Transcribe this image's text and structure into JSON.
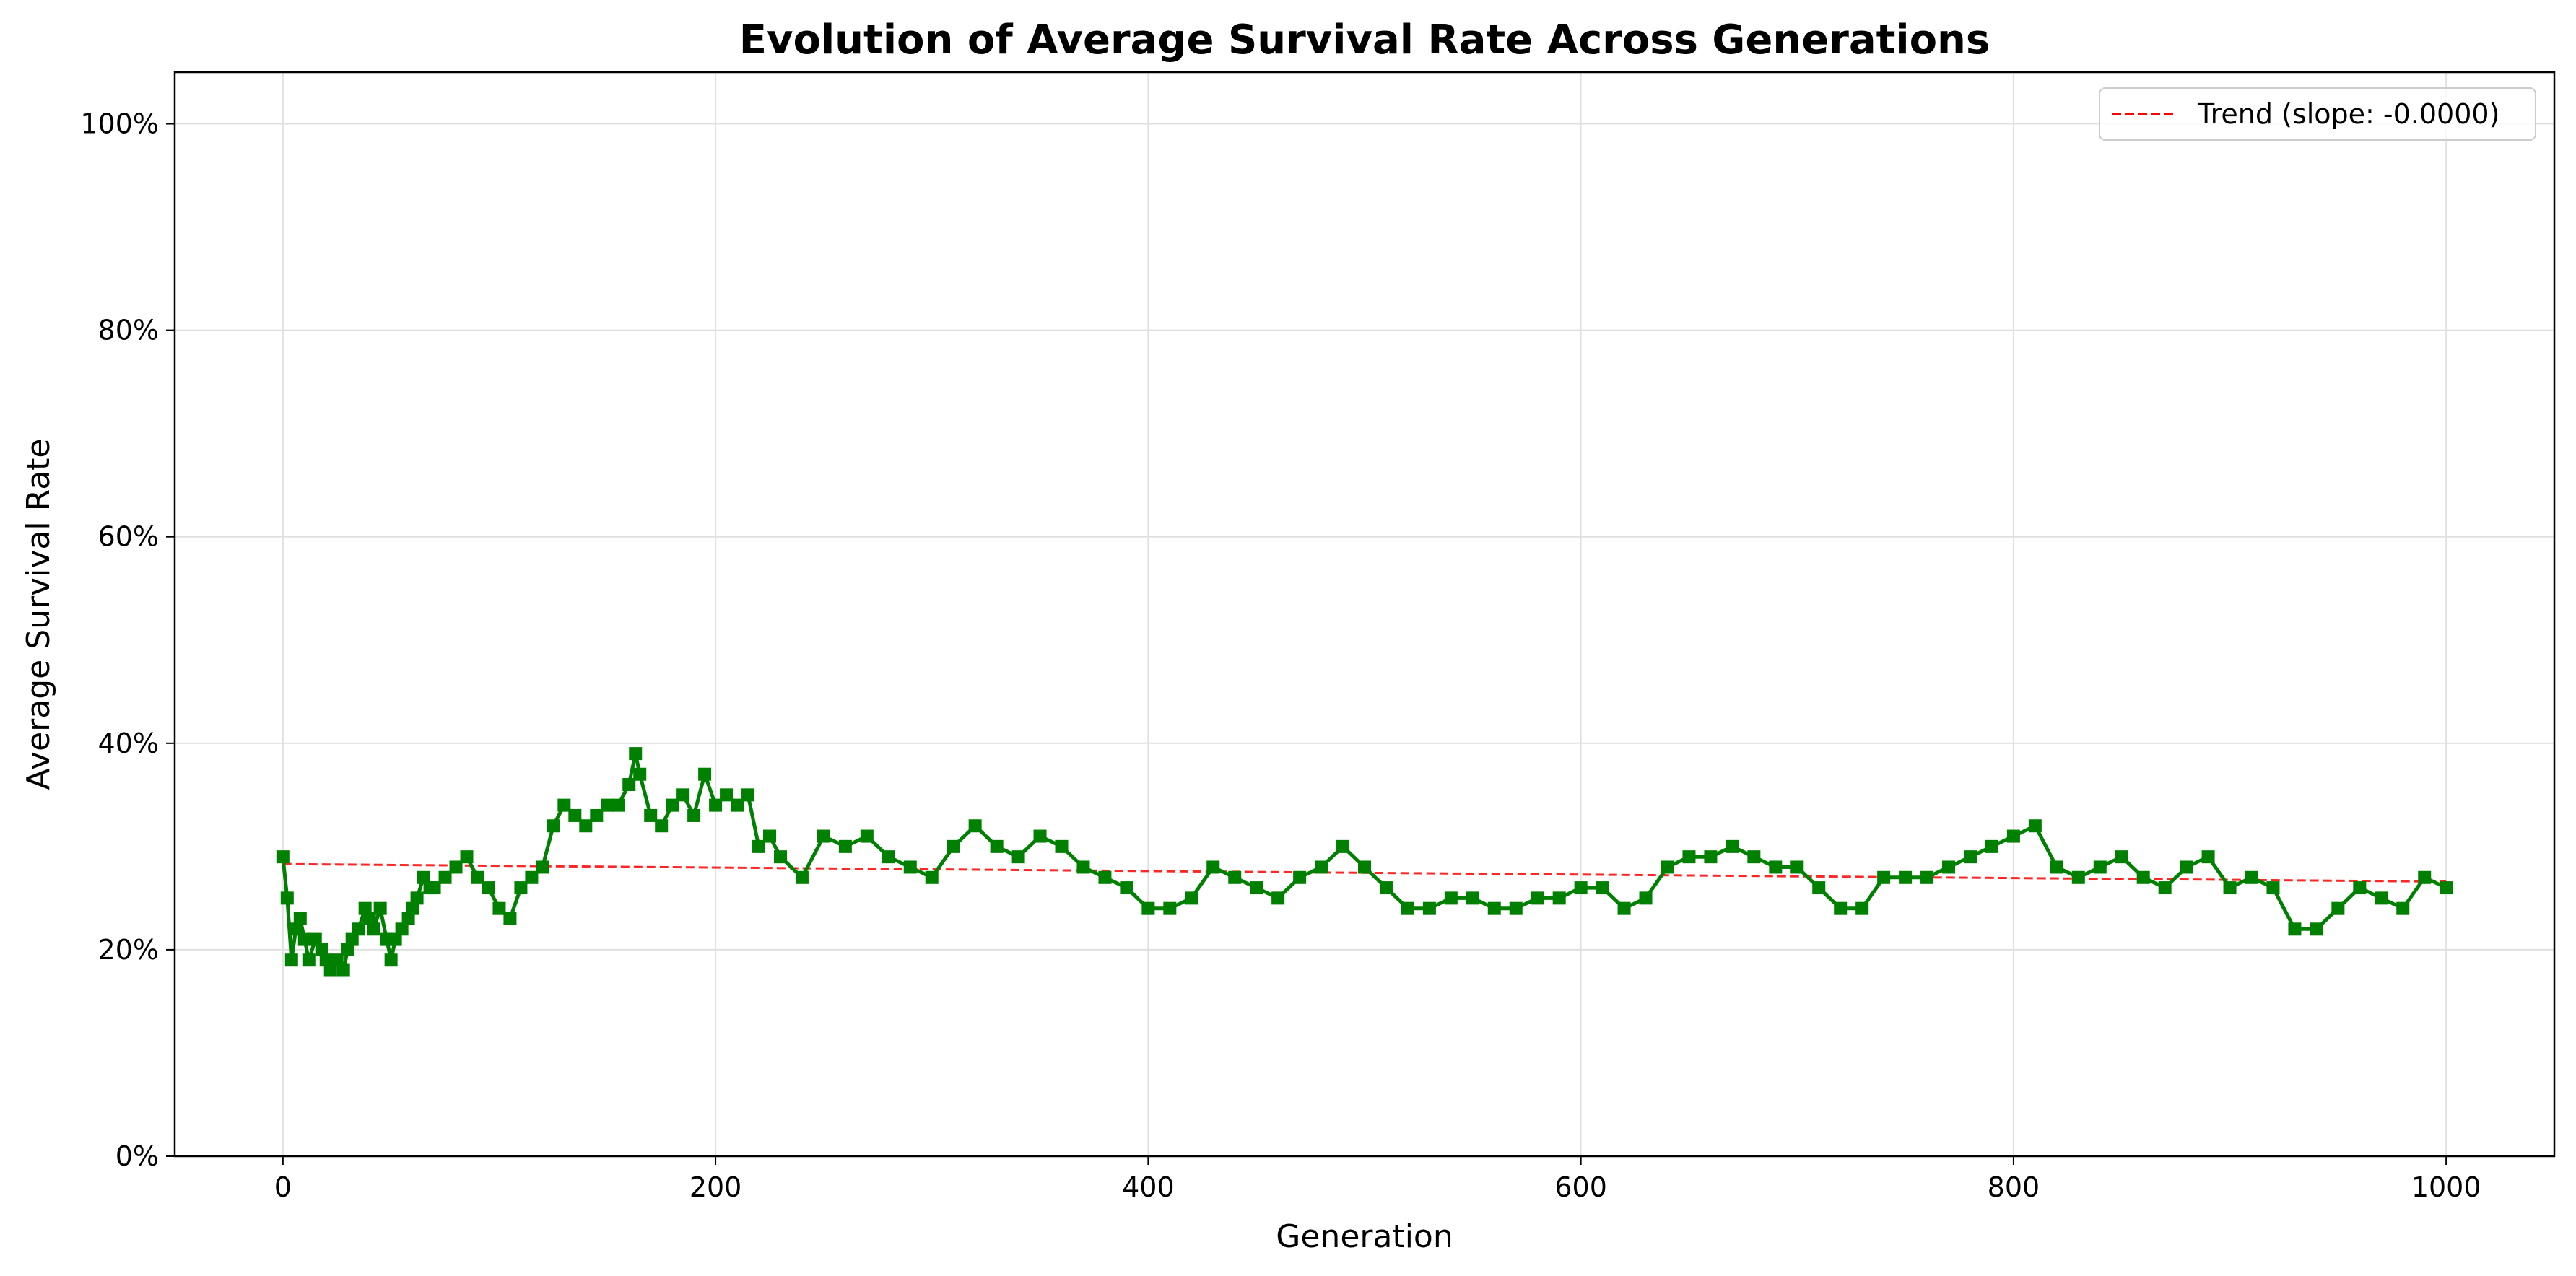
{
  "chart_data": {
    "type": "line",
    "title": "Evolution of Average Survival Rate Across Generations",
    "xlabel": "Generation",
    "ylabel": "Average Survival Rate",
    "xlim": [
      -50,
      1050
    ],
    "ylim": [
      0,
      1.05
    ],
    "x_ticks": [
      0,
      200,
      400,
      600,
      800,
      1000
    ],
    "x_tick_labels": [
      "0",
      "200",
      "400",
      "600",
      "800",
      "1000"
    ],
    "y_ticks": [
      0,
      0.2,
      0.4,
      0.6,
      0.8,
      1.0
    ],
    "y_tick_labels": [
      "0%",
      "20%",
      "40%",
      "60%",
      "80%",
      "100%"
    ],
    "grid": true,
    "legend_position": "top-right",
    "series": [
      {
        "color": "#008000",
        "marker": "square",
        "x": [
          0,
          2,
          4,
          6,
          8,
          10,
          12,
          15,
          18,
          20,
          22,
          25,
          28,
          30,
          32,
          35,
          38,
          40,
          42,
          45,
          48,
          50,
          52,
          55,
          58,
          60,
          62,
          65,
          68,
          70,
          75,
          80,
          85,
          90,
          95,
          100,
          105,
          110,
          115,
          120,
          125,
          130,
          135,
          140,
          145,
          150,
          155,
          160,
          163,
          165,
          170,
          175,
          180,
          185,
          190,
          195,
          200,
          205,
          210,
          215,
          220,
          225,
          230,
          240,
          250,
          260,
          270,
          280,
          290,
          300,
          310,
          320,
          330,
          340,
          350,
          360,
          370,
          380,
          390,
          400,
          410,
          420,
          430,
          440,
          450,
          460,
          470,
          480,
          490,
          500,
          510,
          520,
          530,
          540,
          550,
          560,
          570,
          580,
          590,
          600,
          610,
          620,
          630,
          640,
          650,
          660,
          670,
          680,
          690,
          700,
          710,
          720,
          730,
          740,
          750,
          760,
          770,
          780,
          790,
          800,
          810,
          820,
          830,
          840,
          850,
          860,
          870,
          880,
          890,
          900,
          910,
          920,
          930,
          940,
          950,
          960,
          970,
          980,
          990,
          1000
        ],
        "values": [
          0.29,
          0.25,
          0.19,
          0.22,
          0.23,
          0.21,
          0.19,
          0.21,
          0.2,
          0.19,
          0.18,
          0.19,
          0.18,
          0.2,
          0.21,
          0.22,
          0.24,
          0.23,
          0.22,
          0.24,
          0.21,
          0.19,
          0.21,
          0.22,
          0.23,
          0.24,
          0.25,
          0.27,
          0.26,
          0.26,
          0.27,
          0.28,
          0.29,
          0.27,
          0.26,
          0.24,
          0.23,
          0.26,
          0.27,
          0.28,
          0.32,
          0.34,
          0.33,
          0.32,
          0.33,
          0.34,
          0.34,
          0.36,
          0.39,
          0.37,
          0.33,
          0.32,
          0.34,
          0.35,
          0.33,
          0.37,
          0.34,
          0.35,
          0.34,
          0.35,
          0.3,
          0.31,
          0.29,
          0.27,
          0.31,
          0.3,
          0.31,
          0.29,
          0.28,
          0.27,
          0.3,
          0.32,
          0.3,
          0.29,
          0.31,
          0.3,
          0.28,
          0.27,
          0.26,
          0.24,
          0.24,
          0.25,
          0.28,
          0.27,
          0.26,
          0.25,
          0.27,
          0.28,
          0.3,
          0.28,
          0.26,
          0.24,
          0.24,
          0.25,
          0.25,
          0.24,
          0.24,
          0.25,
          0.25,
          0.26,
          0.26,
          0.24,
          0.25,
          0.28,
          0.29,
          0.29,
          0.3,
          0.29,
          0.28,
          0.28,
          0.26,
          0.24,
          0.24,
          0.27,
          0.27,
          0.27,
          0.28,
          0.29,
          0.3,
          0.31,
          0.32,
          0.28,
          0.27,
          0.28,
          0.29,
          0.27,
          0.26,
          0.28,
          0.29,
          0.26,
          0.27,
          0.26,
          0.22,
          0.22,
          0.24,
          0.26,
          0.25,
          0.24,
          0.27,
          0.26
        ]
      },
      {
        "name": "Trend (slope: -0.0000)",
        "color": "#ff0000",
        "line_style": "dashed",
        "x": [
          0,
          1000
        ],
        "values": [
          0.283,
          0.266
        ]
      }
    ]
  }
}
